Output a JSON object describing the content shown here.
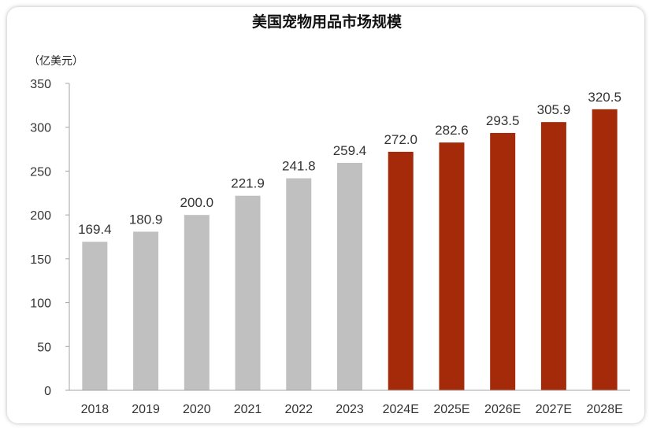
{
  "chart_data": {
    "type": "bar",
    "title": "美国宠物用品市场规模",
    "unit_label": "（亿美元）",
    "categories": [
      "2018",
      "2019",
      "2020",
      "2021",
      "2022",
      "2023",
      "2024E",
      "2025E",
      "2026E",
      "2027E",
      "2028E"
    ],
    "values": [
      169.4,
      180.9,
      200.0,
      221.9,
      241.8,
      259.4,
      272.0,
      282.6,
      293.5,
      305.9,
      320.5
    ],
    "value_labels": [
      "169.4",
      "180.9",
      "200.0",
      "221.9",
      "241.8",
      "259.4",
      "272.0",
      "282.6",
      "293.5",
      "305.9",
      "320.5"
    ],
    "estimated": [
      false,
      false,
      false,
      false,
      false,
      false,
      true,
      true,
      true,
      true,
      true
    ],
    "ylim": [
      0,
      350
    ],
    "yticks": [
      0,
      50,
      100,
      150,
      200,
      250,
      300,
      350
    ],
    "grid": false,
    "legend": "none",
    "colors": {
      "actual": "#c0c0c0",
      "forecast": "#a52a0a",
      "axis": "#a6a6a6"
    }
  }
}
